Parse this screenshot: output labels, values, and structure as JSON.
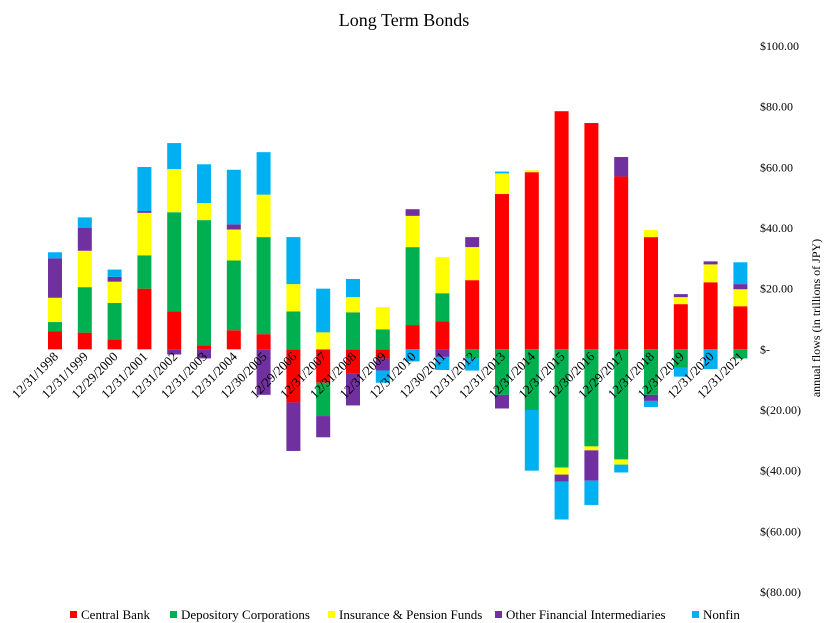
{
  "chart_data": {
    "type": "stacked_bar",
    "title": "Long Term Bonds",
    "y_axis_label": "annual flows (in trillions of JPY)",
    "categories": [
      "12/31/1998",
      "12/31/1999",
      "12/29/2000",
      "12/31/2001",
      "12/31/2002",
      "12/31/2003",
      "12/31/2004",
      "12/30/2005",
      "12/29/2006",
      "12/31/2007",
      "12/31/2008",
      "12/31/2009",
      "12/31/2010",
      "12/30/2011",
      "12/31/2012",
      "12/31/2013",
      "12/31/2014",
      "12/31/2015",
      "12/30/2016",
      "12/29/2017",
      "12/31/2018",
      "12/31/2019",
      "12/31/2020",
      "12/31/2021"
    ],
    "series": [
      {
        "name": "Central Bank",
        "color": "#ff0000",
        "values": [
          6,
          5.5,
          3.3,
          20,
          12.5,
          1.3,
          6.3,
          5,
          -17.5,
          -11,
          -8,
          -3,
          8,
          9.2,
          22.8,
          51.2,
          58.4,
          78.5,
          74.6,
          57,
          37,
          14.9,
          22.1,
          14.2
        ]
      },
      {
        "name": "Depository Corporations",
        "color": "#00b050",
        "values": [
          3,
          15,
          12,
          11,
          32.7,
          41.3,
          23,
          32,
          12.5,
          -11,
          12.2,
          6.6,
          25.7,
          9.3,
          -3,
          -15,
          -20,
          -39,
          -32,
          -36.3,
          -15,
          -6,
          0,
          -3
        ]
      },
      {
        "name": "Insurance & Pension Funds",
        "color": "#ffff00",
        "values": [
          8,
          12,
          7,
          14,
          14.2,
          5.6,
          10.2,
          14,
          9,
          5.6,
          5,
          7.3,
          10.3,
          11.9,
          10.9,
          6.8,
          0.6,
          -2.3,
          -1.3,
          -1.7,
          2.3,
          2.3,
          5.9,
          5.6
        ]
      },
      {
        "name": "Other Financial Intermediaries",
        "color": "#7030a0",
        "values": [
          13,
          7.5,
          1.6,
          0.6,
          -1.7,
          -3,
          1.7,
          -15,
          -16,
          -7,
          -10.5,
          -4,
          2.2,
          -2.5,
          3.3,
          -4.5,
          0,
          -2.3,
          -10,
          6.4,
          -2,
          1,
          1,
          1.7
        ]
      },
      {
        "name": "Nonfin",
        "color": "#00b0f0",
        "values": [
          2,
          3.5,
          2.4,
          14.5,
          8.6,
          12.8,
          18,
          14,
          15.5,
          14.4,
          6,
          -4,
          -4,
          -4.3,
          -4,
          0.6,
          -20,
          -12.5,
          -8,
          -2.6,
          -2,
          -3,
          -6.5,
          7.2
        ]
      }
    ],
    "ylim": [
      -80,
      100
    ],
    "yticks": [
      {
        "value": -80,
        "label": "$(80.00)"
      },
      {
        "value": -60,
        "label": "$(60.00)"
      },
      {
        "value": -40,
        "label": "$(40.00)"
      },
      {
        "value": -20,
        "label": "$(20.00)"
      },
      {
        "value": 0,
        "label": "$-"
      },
      {
        "value": 20,
        "label": "$20.00"
      },
      {
        "value": 40,
        "label": "$40.00"
      },
      {
        "value": 60,
        "label": "$60.00"
      },
      {
        "value": 80,
        "label": "$80.00"
      },
      {
        "value": 100,
        "label": "$100.00"
      }
    ],
    "legend": "bottom"
  }
}
